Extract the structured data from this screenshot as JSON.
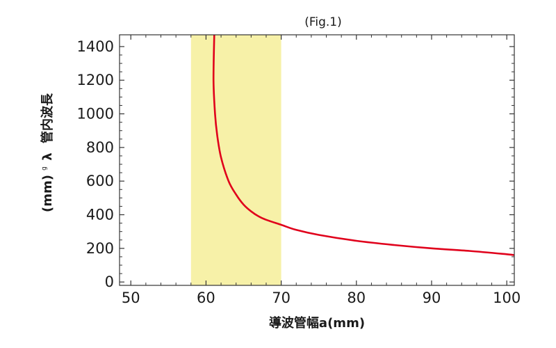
{
  "chart_data": {
    "type": "line",
    "title": "(Fig.1)",
    "xlabel": "導波管幅a(mm)",
    "ylabel_main": "管内波長",
    "ylabel_symbol": "λ",
    "ylabel_subscript": "g",
    "ylabel_unit": "(mm)",
    "xlim": [
      48.5,
      101
    ],
    "ylim": [
      -20,
      1470
    ],
    "xticks": [
      50,
      60,
      70,
      80,
      90,
      100
    ],
    "yticks": [
      0,
      200,
      400,
      600,
      800,
      1000,
      1200,
      1400
    ],
    "xtick_labels": [
      "50",
      "60",
      "70",
      "80",
      "90",
      "100"
    ],
    "ytick_labels": [
      "0",
      "200",
      "400",
      "600",
      "800",
      "1000",
      "1200",
      "1400"
    ],
    "grid": false,
    "highlight_band": {
      "x_range": [
        58,
        70
      ],
      "color": "#f7f1a8"
    },
    "series": [
      {
        "color": "#e0001b",
        "x": [
          61.1,
          61.0,
          61.2,
          61.5,
          62,
          63,
          64,
          65,
          66,
          67,
          68,
          70,
          72,
          75,
          80,
          85,
          90,
          95,
          100,
          101
        ],
        "y": [
          1470,
          1200,
          1000,
          870,
          740,
          600,
          520,
          460,
          420,
          390,
          370,
          340,
          310,
          280,
          245,
          220,
          200,
          185,
          165,
          160
        ]
      }
    ]
  }
}
